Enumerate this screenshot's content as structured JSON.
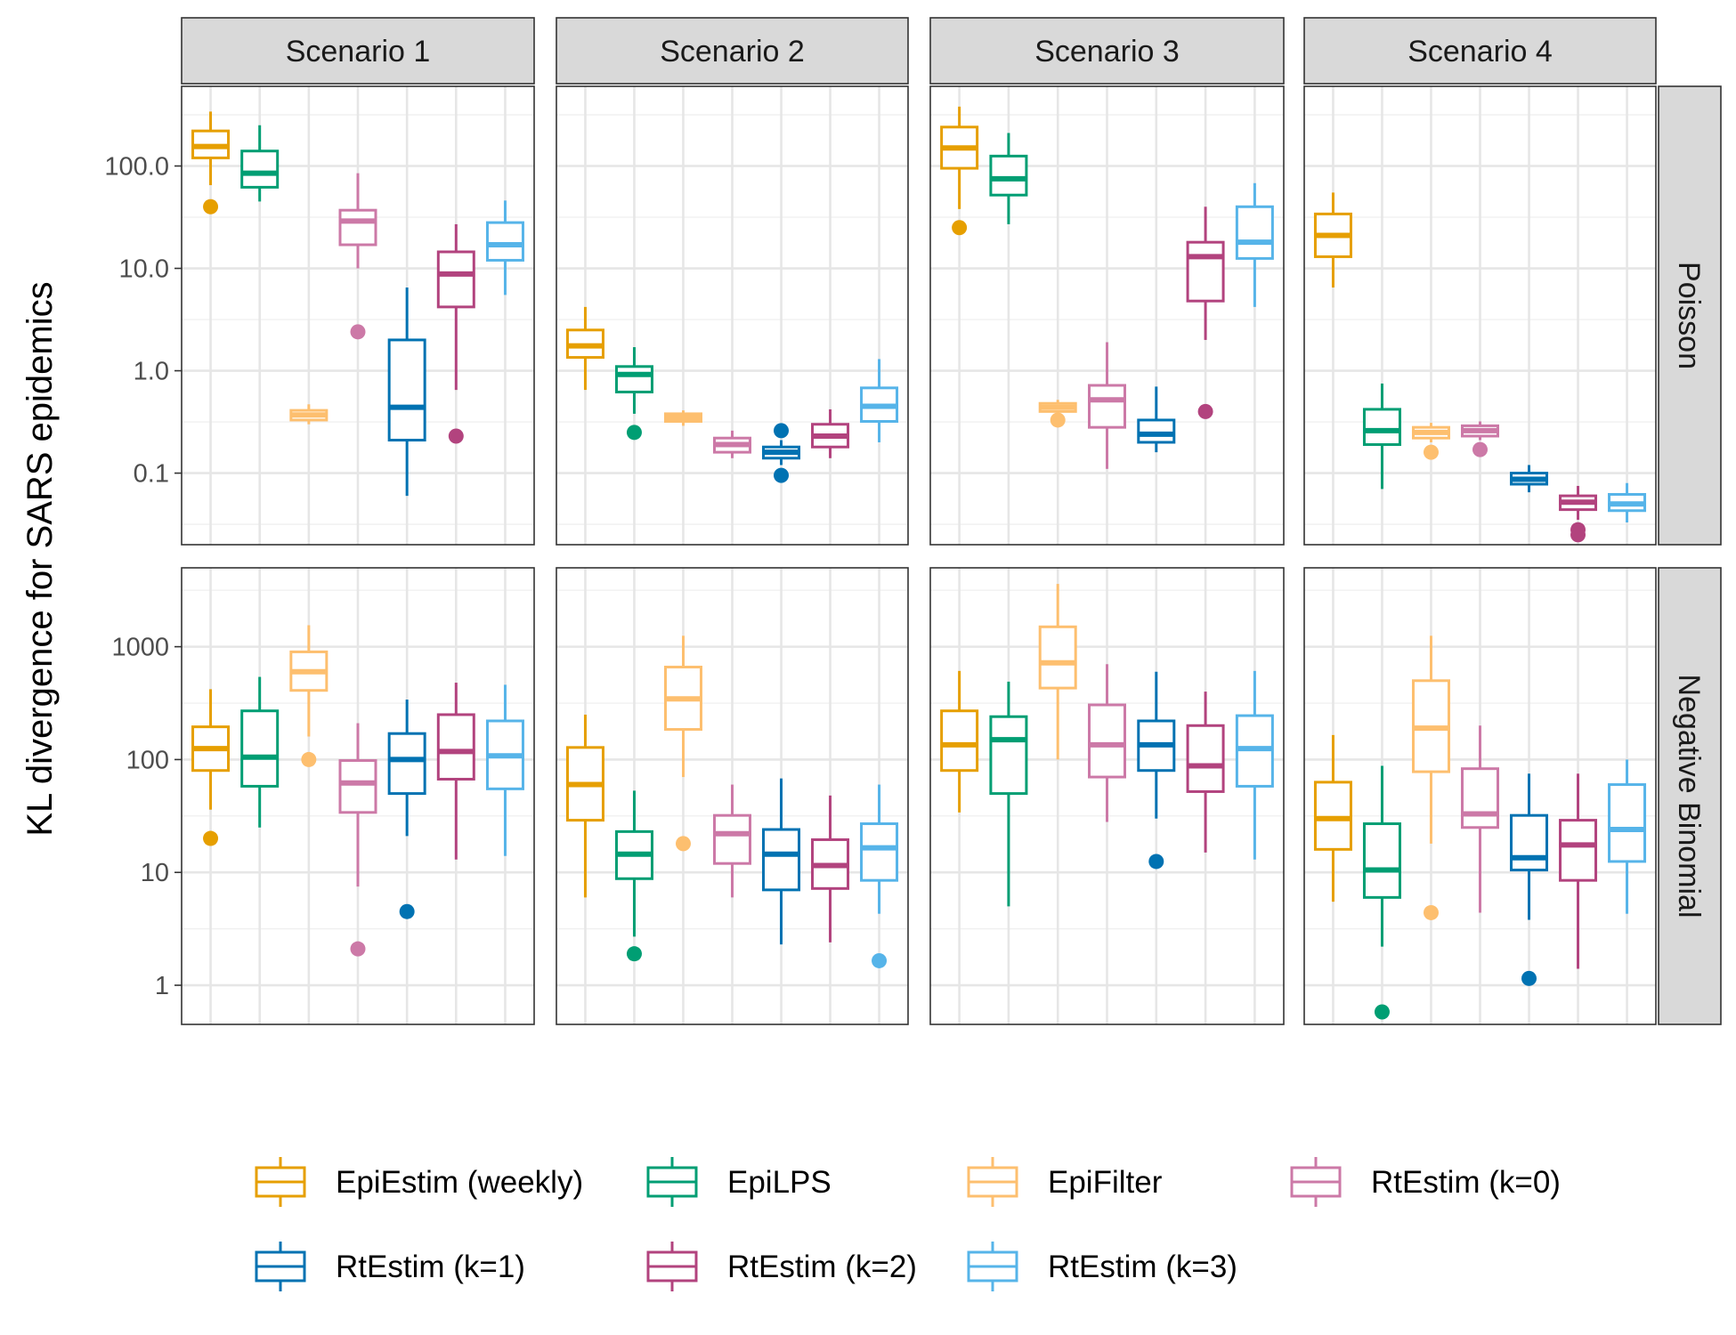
{
  "chart_data": {
    "type": "boxplot",
    "ylabel": "KL divergence for SARS epidemics",
    "y_scale": "log10",
    "grid": true,
    "legend_position": "bottom",
    "columns": [
      "Scenario 1",
      "Scenario 2",
      "Scenario 3",
      "Scenario 4"
    ],
    "rows": [
      {
        "label": "Poisson",
        "ylim": [
          0.02,
          600
        ],
        "yticks": [
          0.1,
          1,
          10,
          100
        ],
        "ytick_labels": [
          "0.1",
          "1.0",
          "10.0",
          "100.0"
        ]
      },
      {
        "label": "Negative Binomial",
        "ylim": [
          0.45,
          5000
        ],
        "yticks": [
          1,
          10,
          100,
          1000
        ],
        "ytick_labels": [
          "1",
          "10",
          "100",
          "1000"
        ]
      }
    ],
    "methods": [
      {
        "name": "EpiEstim (weekly)",
        "color": "#E69F00"
      },
      {
        "name": "EpiLPS",
        "color": "#009E73"
      },
      {
        "name": "EpiFilter",
        "color": "#FDBF6F"
      },
      {
        "name": "RtEstim (k=0)",
        "color": "#CC79A7"
      },
      {
        "name": "RtEstim (k=1)",
        "color": "#0072B2"
      },
      {
        "name": "RtEstim (k=2)",
        "color": "#B2437E"
      },
      {
        "name": "RtEstim (k=3)",
        "color": "#56B4E9"
      }
    ],
    "panels": [
      {
        "row": 0,
        "col": 0,
        "boxes": [
          {
            "method": "EpiEstim (weekly)",
            "whisker_low": 65,
            "q1": 120,
            "median": 155,
            "q3": 220,
            "whisker_high": 340,
            "outliers": [
              40
            ]
          },
          {
            "method": "EpiLPS",
            "whisker_low": 45,
            "q1": 62,
            "median": 85,
            "q3": 140,
            "whisker_high": 250,
            "outliers": []
          },
          {
            "method": "EpiFilter",
            "whisker_low": 0.3,
            "q1": 0.33,
            "median": 0.37,
            "q3": 0.41,
            "whisker_high": 0.47,
            "outliers": []
          },
          {
            "method": "RtEstim (k=0)",
            "whisker_low": 10,
            "q1": 17,
            "median": 29,
            "q3": 37,
            "whisker_high": 85,
            "outliers": [
              2.4
            ]
          },
          {
            "method": "RtEstim (k=1)",
            "whisker_low": 0.06,
            "q1": 0.21,
            "median": 0.44,
            "q3": 2.0,
            "whisker_high": 6.5,
            "outliers": []
          },
          {
            "method": "RtEstim (k=2)",
            "whisker_low": 0.65,
            "q1": 4.2,
            "median": 8.8,
            "q3": 14.5,
            "whisker_high": 27,
            "outliers": [
              0.23
            ]
          },
          {
            "method": "RtEstim (k=3)",
            "whisker_low": 5.5,
            "q1": 12,
            "median": 17,
            "q3": 28,
            "whisker_high": 46,
            "outliers": []
          }
        ]
      },
      {
        "row": 0,
        "col": 1,
        "boxes": [
          {
            "method": "EpiEstim (weekly)",
            "whisker_low": 0.65,
            "q1": 1.35,
            "median": 1.75,
            "q3": 2.5,
            "whisker_high": 4.2,
            "outliers": []
          },
          {
            "method": "EpiLPS",
            "whisker_low": 0.38,
            "q1": 0.62,
            "median": 0.92,
            "q3": 1.1,
            "whisker_high": 1.7,
            "outliers": [
              0.25
            ]
          },
          {
            "method": "EpiFilter",
            "whisker_low": 0.29,
            "q1": 0.32,
            "median": 0.35,
            "q3": 0.38,
            "whisker_high": 0.41,
            "outliers": []
          },
          {
            "method": "RtEstim (k=0)",
            "whisker_low": 0.14,
            "q1": 0.16,
            "median": 0.19,
            "q3": 0.22,
            "whisker_high": 0.26,
            "outliers": []
          },
          {
            "method": "RtEstim (k=1)",
            "whisker_low": 0.12,
            "q1": 0.14,
            "median": 0.16,
            "q3": 0.18,
            "whisker_high": 0.21,
            "outliers": [
              0.095,
              0.26
            ]
          },
          {
            "method": "RtEstim (k=2)",
            "whisker_low": 0.14,
            "q1": 0.18,
            "median": 0.23,
            "q3": 0.3,
            "whisker_high": 0.42,
            "outliers": []
          },
          {
            "method": "RtEstim (k=3)",
            "whisker_low": 0.2,
            "q1": 0.32,
            "median": 0.45,
            "q3": 0.68,
            "whisker_high": 1.3,
            "outliers": []
          }
        ]
      },
      {
        "row": 0,
        "col": 2,
        "boxes": [
          {
            "method": "EpiEstim (weekly)",
            "whisker_low": 38,
            "q1": 95,
            "median": 150,
            "q3": 240,
            "whisker_high": 380,
            "outliers": [
              25
            ]
          },
          {
            "method": "EpiLPS",
            "whisker_low": 27,
            "q1": 52,
            "median": 75,
            "q3": 125,
            "whisker_high": 210,
            "outliers": []
          },
          {
            "method": "EpiFilter",
            "whisker_low": 0.38,
            "q1": 0.4,
            "median": 0.44,
            "q3": 0.48,
            "whisker_high": 0.52,
            "outliers": [
              0.33
            ]
          },
          {
            "method": "RtEstim (k=0)",
            "whisker_low": 0.11,
            "q1": 0.28,
            "median": 0.52,
            "q3": 0.72,
            "whisker_high": 1.9,
            "outliers": []
          },
          {
            "method": "RtEstim (k=1)",
            "whisker_low": 0.16,
            "q1": 0.2,
            "median": 0.24,
            "q3": 0.33,
            "whisker_high": 0.7,
            "outliers": []
          },
          {
            "method": "RtEstim (k=2)",
            "whisker_low": 2.0,
            "q1": 4.8,
            "median": 13,
            "q3": 18,
            "whisker_high": 40,
            "outliers": [
              0.4
            ]
          },
          {
            "method": "RtEstim (k=3)",
            "whisker_low": 4.2,
            "q1": 12.5,
            "median": 18,
            "q3": 40,
            "whisker_high": 68,
            "outliers": []
          }
        ]
      },
      {
        "row": 0,
        "col": 3,
        "boxes": [
          {
            "method": "EpiEstim (weekly)",
            "whisker_low": 6.5,
            "q1": 13,
            "median": 21,
            "q3": 34,
            "whisker_high": 55,
            "outliers": []
          },
          {
            "method": "EpiLPS",
            "whisker_low": 0.07,
            "q1": 0.19,
            "median": 0.26,
            "q3": 0.42,
            "whisker_high": 0.75,
            "outliers": []
          },
          {
            "method": "EpiFilter",
            "whisker_low": 0.2,
            "q1": 0.22,
            "median": 0.25,
            "q3": 0.28,
            "whisker_high": 0.31,
            "outliers": [
              0.16
            ]
          },
          {
            "method": "RtEstim (k=0)",
            "whisker_low": 0.21,
            "q1": 0.23,
            "median": 0.26,
            "q3": 0.29,
            "whisker_high": 0.32,
            "outliers": [
              0.17
            ]
          },
          {
            "method": "RtEstim (k=1)",
            "whisker_low": 0.065,
            "q1": 0.078,
            "median": 0.087,
            "q3": 0.1,
            "whisker_high": 0.12,
            "outliers": []
          },
          {
            "method": "RtEstim (k=2)",
            "whisker_low": 0.035,
            "q1": 0.044,
            "median": 0.052,
            "q3": 0.06,
            "whisker_high": 0.075,
            "outliers": [
              0.025,
              0.028
            ]
          },
          {
            "method": "RtEstim (k=3)",
            "whisker_low": 0.033,
            "q1": 0.043,
            "median": 0.05,
            "q3": 0.062,
            "whisker_high": 0.08,
            "outliers": []
          }
        ]
      },
      {
        "row": 1,
        "col": 0,
        "boxes": [
          {
            "method": "EpiEstim (weekly)",
            "whisker_low": 36,
            "q1": 80,
            "median": 125,
            "q3": 195,
            "whisker_high": 420,
            "outliers": [
              20
            ]
          },
          {
            "method": "EpiLPS",
            "whisker_low": 25,
            "q1": 58,
            "median": 105,
            "q3": 270,
            "whisker_high": 540,
            "outliers": []
          },
          {
            "method": "EpiFilter",
            "whisker_low": 160,
            "q1": 410,
            "median": 600,
            "q3": 900,
            "whisker_high": 1550,
            "outliers": [
              100
            ]
          },
          {
            "method": "RtEstim (k=0)",
            "whisker_low": 7.5,
            "q1": 34,
            "median": 62,
            "q3": 98,
            "whisker_high": 210,
            "outliers": [
              2.1
            ]
          },
          {
            "method": "RtEstim (k=1)",
            "whisker_low": 21,
            "q1": 50,
            "median": 100,
            "q3": 170,
            "whisker_high": 340,
            "outliers": [
              4.5
            ]
          },
          {
            "method": "RtEstim (k=2)",
            "whisker_low": 13,
            "q1": 67,
            "median": 118,
            "q3": 250,
            "whisker_high": 480,
            "outliers": []
          },
          {
            "method": "RtEstim (k=3)",
            "whisker_low": 14,
            "q1": 55,
            "median": 108,
            "q3": 220,
            "whisker_high": 460,
            "outliers": []
          }
        ]
      },
      {
        "row": 1,
        "col": 1,
        "boxes": [
          {
            "method": "EpiEstim (weekly)",
            "whisker_low": 6,
            "q1": 29,
            "median": 60,
            "q3": 128,
            "whisker_high": 250,
            "outliers": []
          },
          {
            "method": "EpiLPS",
            "whisker_low": 2.7,
            "q1": 8.8,
            "median": 14.5,
            "q3": 23,
            "whisker_high": 53,
            "outliers": [
              1.9
            ]
          },
          {
            "method": "EpiFilter",
            "whisker_low": 70,
            "q1": 185,
            "median": 345,
            "q3": 660,
            "whisker_high": 1250,
            "outliers": [
              18
            ]
          },
          {
            "method": "RtEstim (k=0)",
            "whisker_low": 6,
            "q1": 12,
            "median": 22,
            "q3": 32,
            "whisker_high": 60,
            "outliers": []
          },
          {
            "method": "RtEstim (k=1)",
            "whisker_low": 2.3,
            "q1": 7,
            "median": 14.5,
            "q3": 24,
            "whisker_high": 68,
            "outliers": []
          },
          {
            "method": "RtEstim (k=2)",
            "whisker_low": 2.4,
            "q1": 7.2,
            "median": 11.5,
            "q3": 19.5,
            "whisker_high": 48,
            "outliers": []
          },
          {
            "method": "RtEstim (k=3)",
            "whisker_low": 4.3,
            "q1": 8.5,
            "median": 16.5,
            "q3": 27,
            "whisker_high": 60,
            "outliers": [
              1.65
            ]
          }
        ]
      },
      {
        "row": 1,
        "col": 2,
        "boxes": [
          {
            "method": "EpiEstim (weekly)",
            "whisker_low": 34,
            "q1": 80,
            "median": 135,
            "q3": 270,
            "whisker_high": 610,
            "outliers": []
          },
          {
            "method": "EpiLPS",
            "whisker_low": 5,
            "q1": 50,
            "median": 150,
            "q3": 240,
            "whisker_high": 490,
            "outliers": []
          },
          {
            "method": "EpiFilter",
            "whisker_low": 100,
            "q1": 430,
            "median": 720,
            "q3": 1500,
            "whisker_high": 3600,
            "outliers": []
          },
          {
            "method": "RtEstim (k=0)",
            "whisker_low": 28,
            "q1": 70,
            "median": 135,
            "q3": 305,
            "whisker_high": 700,
            "outliers": []
          },
          {
            "method": "RtEstim (k=1)",
            "whisker_low": 30,
            "q1": 80,
            "median": 135,
            "q3": 220,
            "whisker_high": 600,
            "outliers": [
              12.5
            ]
          },
          {
            "method": "RtEstim (k=2)",
            "whisker_low": 15,
            "q1": 52,
            "median": 88,
            "q3": 200,
            "whisker_high": 400,
            "outliers": []
          },
          {
            "method": "RtEstim (k=3)",
            "whisker_low": 13,
            "q1": 58,
            "median": 125,
            "q3": 245,
            "whisker_high": 610,
            "outliers": []
          }
        ]
      },
      {
        "row": 1,
        "col": 3,
        "boxes": [
          {
            "method": "EpiEstim (weekly)",
            "whisker_low": 5.5,
            "q1": 16,
            "median": 30,
            "q3": 63,
            "whisker_high": 165,
            "outliers": []
          },
          {
            "method": "EpiLPS",
            "whisker_low": 2.2,
            "q1": 6,
            "median": 10.5,
            "q3": 27,
            "whisker_high": 88,
            "outliers": [
              0.58
            ]
          },
          {
            "method": "EpiFilter",
            "whisker_low": 18,
            "q1": 78,
            "median": 190,
            "q3": 500,
            "whisker_high": 1250,
            "outliers": [
              4.4
            ]
          },
          {
            "method": "RtEstim (k=0)",
            "whisker_low": 4.4,
            "q1": 25,
            "median": 33,
            "q3": 83,
            "whisker_high": 200,
            "outliers": []
          },
          {
            "method": "RtEstim (k=1)",
            "whisker_low": 3.8,
            "q1": 10.5,
            "median": 13.5,
            "q3": 32,
            "whisker_high": 75,
            "outliers": [
              1.15
            ]
          },
          {
            "method": "RtEstim (k=2)",
            "whisker_low": 1.4,
            "q1": 8.5,
            "median": 17.5,
            "q3": 29,
            "whisker_high": 75,
            "outliers": []
          },
          {
            "method": "RtEstim (k=3)",
            "whisker_low": 4.3,
            "q1": 12.5,
            "median": 24,
            "q3": 60,
            "whisker_high": 100,
            "outliers": []
          }
        ]
      }
    ]
  }
}
